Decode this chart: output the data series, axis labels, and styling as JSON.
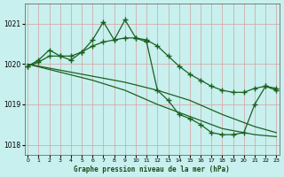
{
  "xlabel": "Graphe pression niveau de la mer (hPa)",
  "bg_color": "#c8f0ee",
  "grid_color": "#d4a0a0",
  "line_color": "#1a6020",
  "ylim": [
    1017.75,
    1021.5
  ],
  "xlim": [
    -0.3,
    23.3
  ],
  "yticks": [
    1018,
    1019,
    1020,
    1021
  ],
  "xticks": [
    0,
    1,
    2,
    3,
    4,
    5,
    6,
    7,
    8,
    9,
    10,
    11,
    12,
    13,
    14,
    15,
    16,
    17,
    18,
    19,
    20,
    21,
    22,
    23
  ],
  "series": [
    {
      "x": [
        0,
        1,
        2,
        3,
        4,
        5,
        6,
        7,
        8,
        9,
        10,
        11,
        12,
        13,
        14,
        15,
        16,
        17,
        18,
        19,
        20,
        21,
        22,
        23
      ],
      "y": [
        1019.95,
        1020.1,
        1020.35,
        1020.2,
        1020.1,
        1020.3,
        1020.6,
        1021.05,
        1020.6,
        1021.1,
        1020.65,
        1020.55,
        1019.35,
        1019.1,
        1018.75,
        1018.65,
        1018.5,
        1018.3,
        1018.25,
        1018.25,
        1018.3,
        1019.0,
        1019.45,
        1019.35
      ]
    },
    {
      "x": [
        0,
        1,
        2,
        3,
        4,
        5,
        6,
        7,
        8,
        9,
        10,
        11,
        12,
        13,
        14,
        15,
        16,
        17,
        18,
        19,
        20,
        21,
        22,
        23
      ],
      "y": [
        1019.95,
        1020.05,
        1020.2,
        1020.2,
        1020.2,
        1020.3,
        1020.45,
        1020.55,
        1020.6,
        1020.65,
        1020.65,
        1020.6,
        1020.45,
        1020.2,
        1019.95,
        1019.75,
        1019.6,
        1019.45,
        1019.35,
        1019.3,
        1019.3,
        1019.4,
        1019.45,
        1019.4
      ]
    },
    {
      "x": [
        0,
        3,
        6,
        9,
        12,
        15,
        18,
        21,
        23
      ],
      "y": [
        1020.0,
        1019.85,
        1019.7,
        1019.55,
        1019.35,
        1019.1,
        1018.75,
        1018.45,
        1018.3
      ]
    },
    {
      "x": [
        0,
        3,
        6,
        9,
        12,
        15,
        18,
        21,
        23
      ],
      "y": [
        1020.0,
        1019.8,
        1019.6,
        1019.35,
        1019.0,
        1018.7,
        1018.4,
        1018.25,
        1018.2
      ]
    }
  ]
}
